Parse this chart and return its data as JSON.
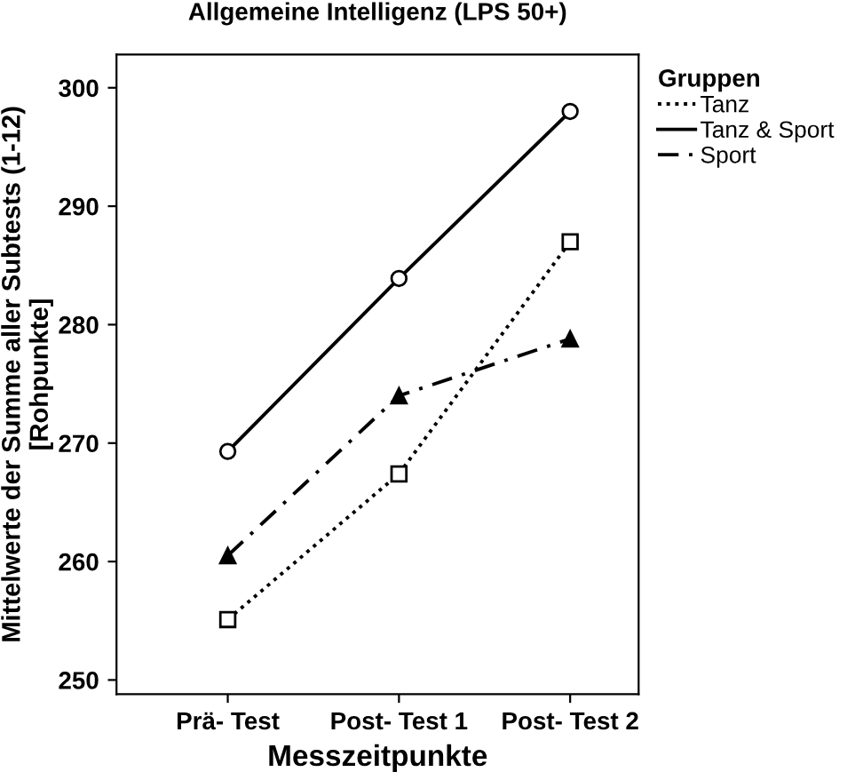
{
  "chart_data": {
    "type": "line",
    "title": "Allgemeine Intelligenz (LPS 50+)",
    "xlabel": "Messzeitpunkte",
    "ylabel": "Mittelwerte der Summe aller Subtests (1-12)\n[Rohpunkte]",
    "legend_title": "Gruppen",
    "categories": [
      "Prä- Test",
      "Post- Test 1",
      "Post- Test 2"
    ],
    "series": [
      {
        "name": "Tanz",
        "color": "#000000",
        "values": [
          255.1,
          267.4,
          287.0
        ],
        "marker": "square",
        "line_style": "dotted"
      },
      {
        "name": "Tanz & Sport",
        "color": "#000000",
        "values": [
          269.3,
          283.9,
          298.0
        ],
        "marker": "circle",
        "line_style": "solid"
      },
      {
        "name": "Sport",
        "color": "#000000",
        "values": [
          260.5,
          274.0,
          278.8
        ],
        "marker": "triangle",
        "line_style": "dashdot"
      }
    ],
    "ylim": [
      248.8,
      302.8
    ],
    "yticks": [
      250,
      260,
      270,
      280,
      290,
      300
    ],
    "grid": false,
    "legend": "top right"
  }
}
